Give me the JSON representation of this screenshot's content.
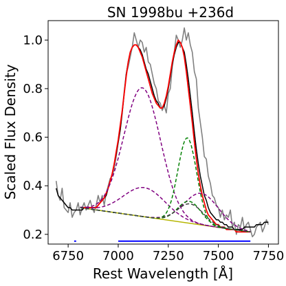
{
  "chart_data": {
    "type": "line",
    "title": "SN 1998bu   +236d",
    "xlabel": "Rest Wavelength [Å]",
    "ylabel": "Scaled Flux Density",
    "xlim": [
      6650,
      7800
    ],
    "ylim": [
      0.16,
      1.08
    ],
    "xticks": [
      6750,
      7000,
      7250,
      7500,
      7750
    ],
    "yticks": [
      0.2,
      0.4,
      0.6,
      0.8,
      1.0
    ],
    "xtick_labels": [
      "6750",
      "7000",
      "7250",
      "7500",
      "7750"
    ],
    "ytick_labels": [
      "0.2",
      "0.4",
      "0.6",
      "0.8",
      "1.0"
    ],
    "grid": false,
    "continuum": {
      "x": [
        6810,
        7660
      ],
      "y": [
        0.31,
        0.21
      ]
    },
    "series": [
      {
        "style": "observed",
        "color": "#808080",
        "x": [
          6690,
          6700,
          6710,
          6720,
          6730,
          6740,
          6750,
          6760,
          6770,
          6780,
          6790,
          6800,
          6810,
          6820,
          6830,
          6840,
          6850,
          6860,
          6870,
          6880,
          6890,
          6900,
          6910,
          6920,
          6930,
          6940,
          6950,
          6960,
          6970,
          6980,
          6990,
          7000,
          7010,
          7020,
          7030,
          7040,
          7050,
          7060,
          7070,
          7080,
          7090,
          7100,
          7110,
          7120,
          7130,
          7140,
          7150,
          7160,
          7170,
          7180,
          7190,
          7200,
          7210,
          7220,
          7230,
          7240,
          7250,
          7260,
          7270,
          7280,
          7290,
          7300,
          7310,
          7320,
          7330,
          7340,
          7350,
          7360,
          7370,
          7380,
          7390,
          7400,
          7410,
          7420,
          7430,
          7440,
          7450,
          7460,
          7470,
          7480,
          7490,
          7500,
          7510,
          7520,
          7530,
          7540,
          7550,
          7560,
          7570,
          7580,
          7590,
          7600,
          7610,
          7620,
          7630,
          7640,
          7650,
          7660,
          7670,
          7680,
          7690,
          7700,
          7710,
          7720,
          7730,
          7740,
          7750
        ],
        "y": [
          0.42,
          0.36,
          0.34,
          0.39,
          0.31,
          0.3,
          0.29,
          0.33,
          0.27,
          0.29,
          0.3,
          0.33,
          0.28,
          0.31,
          0.33,
          0.3,
          0.32,
          0.34,
          0.31,
          0.29,
          0.32,
          0.36,
          0.33,
          0.36,
          0.32,
          0.37,
          0.4,
          0.43,
          0.44,
          0.47,
          0.52,
          0.58,
          0.63,
          0.71,
          0.79,
          0.86,
          0.89,
          0.93,
          0.97,
          1.03,
          1.0,
          0.97,
          1.0,
          0.99,
          0.95,
          0.97,
          0.91,
          0.9,
          0.86,
          0.82,
          0.8,
          0.75,
          0.74,
          0.71,
          0.73,
          0.7,
          0.78,
          0.8,
          0.89,
          0.95,
          1.02,
          1.0,
          0.97,
          1.0,
          1.05,
          1.0,
          1.03,
          0.98,
          0.95,
          0.87,
          0.84,
          0.72,
          0.66,
          0.6,
          0.52,
          0.51,
          0.44,
          0.41,
          0.36,
          0.35,
          0.32,
          0.31,
          0.27,
          0.3,
          0.26,
          0.28,
          0.27,
          0.3,
          0.23,
          0.25,
          0.2,
          0.24,
          0.23,
          0.27,
          0.22,
          0.24,
          0.25,
          0.22,
          0.19,
          0.2,
          0.23,
          0.24,
          0.25,
          0.21,
          0.23,
          0.26,
          0.24
        ]
      },
      {
        "style": "smoothed",
        "color": "#000000",
        "x": [
          6690,
          6700,
          6710,
          6720,
          6730,
          6740,
          6750,
          6760,
          6770,
          6780,
          6790,
          6800,
          6810,
          6820,
          6830,
          6840,
          6850,
          6860,
          6870,
          6880,
          6890,
          6900,
          6910,
          6920,
          6930,
          6940,
          6950,
          6960,
          6970,
          6980,
          6990,
          7000,
          7010,
          7020,
          7030,
          7040,
          7050,
          7060,
          7070,
          7080,
          7090,
          7100,
          7110,
          7120,
          7130,
          7140,
          7150,
          7160,
          7170,
          7180,
          7190,
          7200,
          7210,
          7220,
          7230,
          7240,
          7250,
          7260,
          7270,
          7280,
          7290,
          7300,
          7310,
          7320,
          7330,
          7340,
          7350,
          7360,
          7370,
          7380,
          7390,
          7400,
          7410,
          7420,
          7430,
          7440,
          7450,
          7460,
          7470,
          7480,
          7490,
          7500,
          7510,
          7520,
          7530,
          7540,
          7550,
          7560,
          7570,
          7580,
          7590,
          7600,
          7610,
          7620,
          7630,
          7640,
          7650,
          7660,
          7670,
          7680,
          7690,
          7700,
          7710,
          7720,
          7730,
          7740,
          7750
        ],
        "y": [
          0.39,
          0.36,
          0.35,
          0.34,
          0.33,
          0.32,
          0.31,
          0.31,
          0.3,
          0.3,
          0.3,
          0.3,
          0.3,
          0.3,
          0.31,
          0.31,
          0.31,
          0.31,
          0.31,
          0.31,
          0.31,
          0.32,
          0.33,
          0.34,
          0.35,
          0.36,
          0.39,
          0.42,
          0.45,
          0.49,
          0.53,
          0.58,
          0.63,
          0.7,
          0.78,
          0.86,
          0.91,
          0.95,
          0.97,
          0.98,
          0.98,
          0.97,
          0.96,
          0.94,
          0.91,
          0.88,
          0.86,
          0.83,
          0.8,
          0.77,
          0.75,
          0.74,
          0.72,
          0.72,
          0.73,
          0.76,
          0.8,
          0.85,
          0.9,
          0.94,
          0.97,
          0.99,
          0.99,
          0.97,
          0.95,
          0.9,
          0.84,
          0.77,
          0.7,
          0.62,
          0.55,
          0.49,
          0.44,
          0.4,
          0.36,
          0.34,
          0.31,
          0.29,
          0.28,
          0.27,
          0.26,
          0.26,
          0.25,
          0.25,
          0.24,
          0.24,
          0.23,
          0.23,
          0.23,
          0.22,
          0.22,
          0.22,
          0.22,
          0.22,
          0.23,
          0.23,
          0.23,
          0.23,
          0.23,
          0.23,
          0.24,
          0.24,
          0.24,
          0.24,
          0.25,
          0.25,
          0.25
        ]
      },
      {
        "style": "fit",
        "color": "#ff0000",
        "x": [
          6810,
          6820,
          6830,
          6840,
          6850,
          6860,
          6870,
          6880,
          6890,
          6900,
          6910,
          6920,
          6930,
          6940,
          6950,
          6960,
          6970,
          6980,
          6990,
          7000,
          7010,
          7020,
          7030,
          7040,
          7050,
          7060,
          7070,
          7080,
          7090,
          7100,
          7110,
          7120,
          7130,
          7140,
          7150,
          7160,
          7170,
          7180,
          7190,
          7200,
          7210,
          7220,
          7230,
          7240,
          7250,
          7260,
          7270,
          7280,
          7290,
          7300,
          7310,
          7320,
          7330,
          7340,
          7350,
          7360,
          7370,
          7380,
          7390,
          7400,
          7410,
          7420,
          7430,
          7440,
          7450,
          7460,
          7470,
          7480,
          7490,
          7500,
          7510,
          7520,
          7530,
          7540,
          7550,
          7560,
          7570,
          7580,
          7590,
          7600,
          7610,
          7620,
          7630,
          7640,
          7650,
          7660
        ],
        "y": [
          0.31,
          0.31,
          0.31,
          0.31,
          0.31,
          0.31,
          0.31,
          0.31,
          0.31,
          0.32,
          0.33,
          0.34,
          0.35,
          0.37,
          0.39,
          0.42,
          0.45,
          0.49,
          0.54,
          0.59,
          0.65,
          0.71,
          0.78,
          0.85,
          0.91,
          0.95,
          0.97,
          0.98,
          0.98,
          0.97,
          0.95,
          0.93,
          0.9,
          0.87,
          0.84,
          0.81,
          0.78,
          0.76,
          0.74,
          0.73,
          0.72,
          0.72,
          0.74,
          0.77,
          0.81,
          0.86,
          0.91,
          0.95,
          0.98,
          1.0,
          0.99,
          0.97,
          0.93,
          0.87,
          0.8,
          0.73,
          0.66,
          0.58,
          0.51,
          0.45,
          0.4,
          0.36,
          0.33,
          0.3,
          0.28,
          0.27,
          0.26,
          0.25,
          0.24,
          0.24,
          0.23,
          0.23,
          0.23,
          0.22,
          0.22,
          0.22,
          0.22,
          0.22,
          0.21,
          0.21,
          0.21,
          0.21,
          0.21,
          0.21,
          0.21,
          0.21
        ]
      },
      {
        "style": "component",
        "color": "#800080",
        "dashed": true,
        "center": 7120,
        "amplitude": 0.53,
        "sigma": 92
      },
      {
        "style": "component",
        "color": "#800080",
        "dashed": true,
        "center": 7130,
        "amplitude": 0.12,
        "sigma": 105
      },
      {
        "style": "component",
        "color": "#800080",
        "dashed": true,
        "center": 7415,
        "amplitude": 0.13,
        "sigma": 85
      },
      {
        "style": "component",
        "color": "#008000",
        "dashed": true,
        "center": 7345,
        "amplitude": 0.35,
        "sigma": 47
      },
      {
        "style": "component",
        "color": "#008000",
        "dashed": true,
        "center": 7355,
        "amplitude": 0.09,
        "sigma": 58
      },
      {
        "style": "component",
        "color": "#404040",
        "dashed": true,
        "center": 7360,
        "amplitude": 0.08,
        "sigma": 65
      }
    ],
    "bands": [
      {
        "color": "#0000ff",
        "x": [
          6780,
          6790
        ],
        "y": 0.172
      },
      {
        "color": "#0000ff",
        "x": [
          7000,
          7660
        ],
        "y": 0.172
      }
    ]
  }
}
